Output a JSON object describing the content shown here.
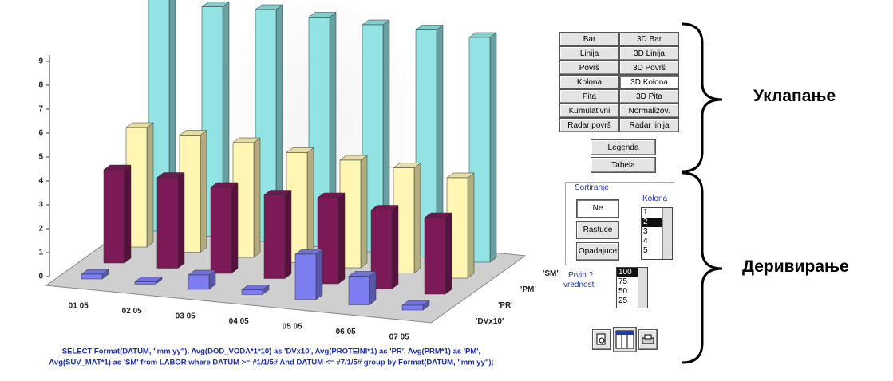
{
  "chart_data": {
    "type": "bar3d",
    "categories": [
      "01 05",
      "02 05",
      "03 05",
      "04 05",
      "05 05",
      "06 05",
      "07 05"
    ],
    "series": [
      {
        "name": "'DVx10'",
        "color": "#7d7df2",
        "values": [
          0.2,
          0.1,
          0.6,
          0.2,
          1.9,
          1.2,
          0.2
        ]
      },
      {
        "name": "'PR'",
        "color": "#7b1a57",
        "values": [
          3.9,
          3.8,
          3.6,
          3.5,
          3.6,
          3.3,
          3.2
        ]
      },
      {
        "name": "'PM'",
        "color": "#fff6b4",
        "values": [
          5.0,
          4.9,
          4.8,
          4.6,
          4.5,
          4.4,
          4.2
        ]
      },
      {
        "name": "'SM'",
        "color": "#92e4e4",
        "values": [
          9.8,
          9.6,
          9.7,
          9.6,
          9.5,
          9.5,
          9.4
        ]
      }
    ],
    "ylim": [
      0,
      9
    ],
    "yticks": [
      0,
      1,
      2,
      3,
      4,
      5,
      6,
      7,
      8,
      9
    ],
    "query": [
      "SELECT Format(DATUM, \"mm yy\"), Avg(DOD_VODA*1*10) as 'DVx10', Avg(PROTEINI*1) as 'PR', Avg(PRM*1) as 'PM',",
      "Avg(SUV_MAT*1) as 'SM' from LABOR where DATUM >= #1/1/5# And DATUM <= #7/1/5# group by Format(DATUM, \"mm yy\");"
    ]
  },
  "chart_types": [
    [
      "Bar",
      "3D Bar"
    ],
    [
      "Linija",
      "3D Linija"
    ],
    [
      "Površ",
      "3D Površ"
    ],
    [
      "Kolona",
      "3D Kolona"
    ],
    [
      "Pita",
      "3D Pita"
    ],
    [
      "Kumulativni",
      "Normalizov."
    ],
    [
      "Radar površ",
      "Radar linija"
    ]
  ],
  "view_buttons": [
    "Legenda",
    "Tabela"
  ],
  "sort": {
    "title": "Sortiranje",
    "buttons": [
      "Ne",
      "Rastuce",
      "Opadajuce"
    ],
    "column_label": "Kolona",
    "columns": [
      "1",
      "2",
      "3",
      "4",
      "5"
    ]
  },
  "top_n": {
    "label": [
      "Prvih ?",
      "vrednosti"
    ],
    "options": [
      "100",
      "75",
      "50",
      "25"
    ]
  },
  "annotations": [
    "Уклапање",
    "Деривирање"
  ]
}
